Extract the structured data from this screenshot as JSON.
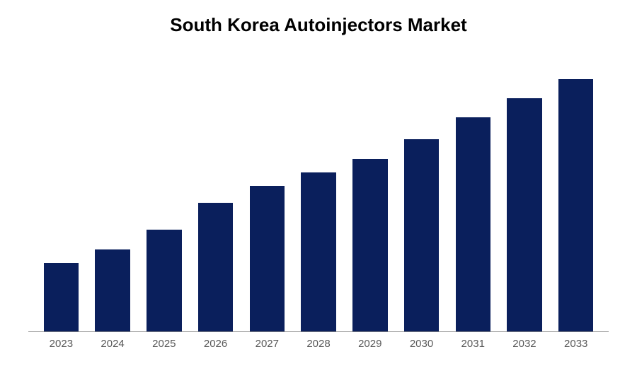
{
  "chart": {
    "type": "bar",
    "title": "South Korea Autoinjectors Market",
    "title_fontsize": 26,
    "title_fontweight": "bold",
    "title_color": "#000000",
    "categories": [
      "2023",
      "2024",
      "2025",
      "2026",
      "2027",
      "2028",
      "2029",
      "2030",
      "2031",
      "2032",
      "2033"
    ],
    "values": [
      25,
      30,
      37,
      47,
      53,
      58,
      63,
      70,
      78,
      85,
      92
    ],
    "ylim": [
      0,
      100
    ],
    "bar_color": "#0a1f5c",
    "bar_width": 0.72,
    "background_color": "#ffffff",
    "axis_line_color": "#888888",
    "label_fontsize": 15,
    "label_color": "#595959",
    "grid": false
  }
}
